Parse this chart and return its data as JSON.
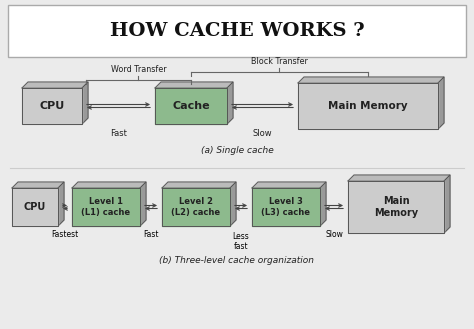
{
  "title": "HOW CACHE WORKS ?",
  "bg_color": "#ebebeb",
  "title_bg": "#ffffff",
  "box_gray_face": "#cccccc",
  "box_gray_side": "#999999",
  "box_gray_top": "#bbbbbb",
  "box_green_face": "#8dba8d",
  "box_green_side": "#5a8a5a",
  "box_green_top": "#aacfaa",
  "diagram1_caption": "(a) Single cache",
  "diagram2_caption": "(b) Three-level cache organization",
  "word_transfer_label": "Word Transfer",
  "block_transfer_label": "Block Transfer",
  "fast_label": "Fast",
  "slow_label": "Slow",
  "fastest_label": "Fastest",
  "fast_label2": "Fast",
  "less_fast_label": "Less\nfast",
  "slow_label2": "Slow",
  "cpu_label": "CPU",
  "cache_label": "Cache",
  "main_memory_label": "Main Memory",
  "l1_label": "Level 1\n(L1) cache",
  "l2_label": "Level 2\n(L2) cache",
  "l3_label": "Level 3\n(L3) cache",
  "main_memory_label2": "Main\nMemory",
  "arrow_color": "#444444",
  "text_color": "#222222",
  "edge_color": "#555555"
}
